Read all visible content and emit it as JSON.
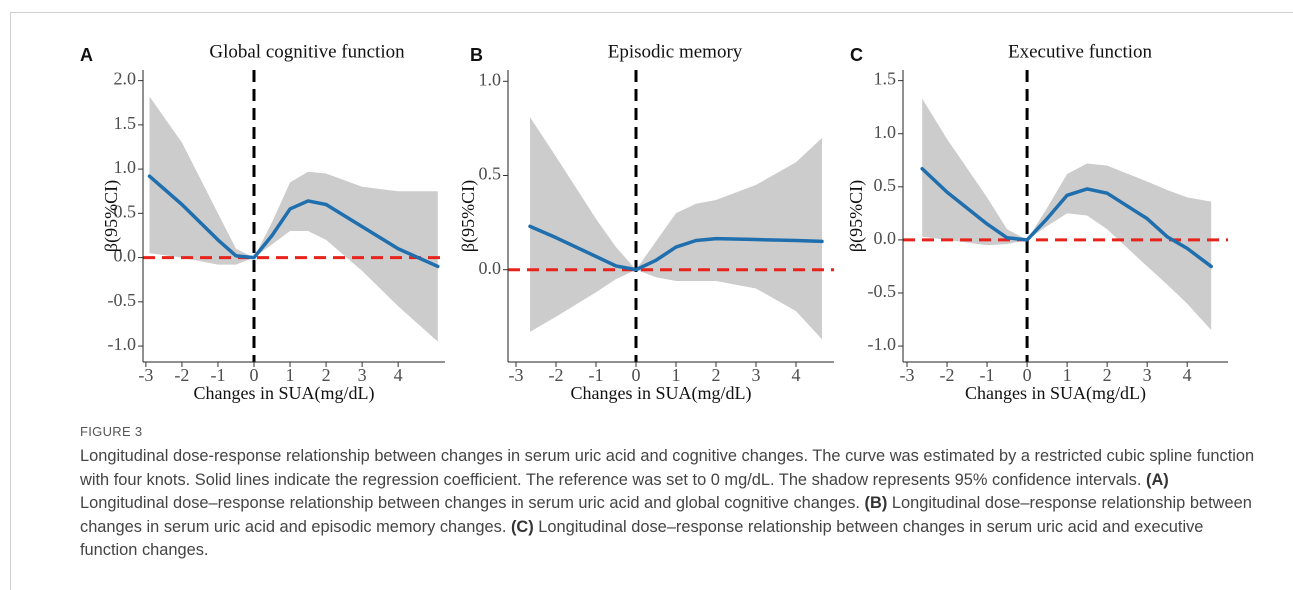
{
  "chart_data": [
    {
      "type": "line",
      "panel": "A",
      "title": "Global cognitive function",
      "xlabel": "Changes in  SUA(mg/dL)",
      "ylabel": "β(95%CI)",
      "xlim": [
        -3.08,
        5.3
      ],
      "xticks": [
        -3,
        -2,
        -1,
        0,
        1,
        2,
        3,
        4
      ],
      "ylim": [
        -1.18,
        2.12
      ],
      "yticks": [
        {
          "value": -1.0,
          "label": "-1.0"
        },
        -0.5,
        {
          "value": 0.0,
          "label": "0.0"
        },
        0.5,
        {
          "value": 1.0,
          "label": "1.0"
        },
        1.5,
        {
          "value": 2.0,
          "label": "2.0"
        }
      ],
      "x": [
        -2.9,
        -2,
        -1,
        -0.5,
        0,
        0.5,
        1,
        1.5,
        2,
        3,
        4,
        5.1
      ],
      "values": [
        0.92,
        0.6,
        0.2,
        0.02,
        0,
        0.25,
        0.55,
        0.64,
        0.6,
        0.35,
        0.1,
        -0.1
      ],
      "lower": [
        0.05,
        0.0,
        -0.08,
        -0.08,
        0,
        0.15,
        0.3,
        0.3,
        0.2,
        -0.15,
        -0.55,
        -0.95
      ],
      "upper": [
        1.82,
        1.3,
        0.5,
        0.1,
        0,
        0.4,
        0.85,
        0.97,
        0.95,
        0.8,
        0.75,
        0.75
      ],
      "hline": 0,
      "vline": 0,
      "color": "#1f6fae",
      "band_color": "#cccccc",
      "hline_color": "#e8231c",
      "vline_color": "#000000"
    },
    {
      "type": "line",
      "panel": "B",
      "title": "Episodic memory",
      "xlabel": "Changes in  SUA(mg/dL)",
      "ylabel": "β(95%CI)",
      "xlim": [
        -3.2,
        4.95
      ],
      "xticks": [
        -3,
        -2,
        -1,
        0,
        1,
        2,
        3,
        4
      ],
      "ylim": [
        -0.49,
        1.06
      ],
      "yticks": [
        {
          "value": 0.0,
          "label": "0.0"
        },
        0.5,
        {
          "value": 1.0,
          "label": "1.0"
        }
      ],
      "x": [
        -2.65,
        -2,
        -1,
        -0.5,
        0,
        0.5,
        1,
        1.5,
        2,
        3,
        4,
        4.65
      ],
      "values": [
        0.23,
        0.17,
        0.07,
        0.02,
        0,
        0.05,
        0.12,
        0.155,
        0.165,
        0.16,
        0.155,
        0.15
      ],
      "lower": [
        -0.33,
        -0.25,
        -0.12,
        -0.05,
        0,
        -0.04,
        -0.06,
        -0.06,
        -0.06,
        -0.1,
        -0.22,
        -0.37
      ],
      "upper": [
        0.81,
        0.6,
        0.27,
        0.12,
        0,
        0.15,
        0.3,
        0.35,
        0.37,
        0.45,
        0.57,
        0.7
      ],
      "hline": 0,
      "vline": 0,
      "color": "#1f6fae",
      "band_color": "#cccccc",
      "hline_color": "#e8231c",
      "vline_color": "#000000"
    },
    {
      "type": "line",
      "panel": "C",
      "title": "Executive function",
      "xlabel": "Changes in  SUA(mg/dL)",
      "ylabel": "β(95%CI)",
      "xlim": [
        -3.1,
        5.02
      ],
      "xticks": [
        -3,
        -2,
        -1,
        0,
        1,
        2,
        3,
        4
      ],
      "ylim": [
        -1.15,
        1.6
      ],
      "yticks": [
        {
          "value": -1.0,
          "label": "-1.0"
        },
        -0.5,
        {
          "value": 0.0,
          "label": "0.0"
        },
        0.5,
        {
          "value": 1.0,
          "label": "1.0"
        },
        1.5
      ],
      "x": [
        -2.62,
        -2,
        -1,
        -0.5,
        0,
        0.5,
        1,
        1.5,
        2,
        3,
        3.5,
        4,
        4.6
      ],
      "values": [
        0.67,
        0.45,
        0.15,
        0.02,
        0,
        0.2,
        0.42,
        0.48,
        0.44,
        0.2,
        0.03,
        -0.08,
        -0.25
      ],
      "lower": [
        0.03,
        0.0,
        -0.05,
        -0.04,
        0,
        0.13,
        0.25,
        0.23,
        0.1,
        -0.25,
        -0.42,
        -0.6,
        -0.85
      ],
      "upper": [
        1.33,
        0.95,
        0.4,
        0.1,
        0,
        0.3,
        0.62,
        0.72,
        0.7,
        0.55,
        0.47,
        0.4,
        0.36
      ],
      "hline": 0,
      "vline": 0,
      "color": "#1f6fae",
      "band_color": "#cccccc",
      "hline_color": "#e8231c",
      "vline_color": "#000000"
    }
  ],
  "caption": {
    "label": "FIGURE 3",
    "intro": "Longitudinal dose-response relationship between changes in serum uric acid and cognitive changes. The curve was estimated by a restricted cubic spline function with four knots. Solid lines indicate the regression coefficient. The reference was set to 0 mg/dL. The shadow represents 95% confidence intervals.",
    "items": [
      {
        "tag": "(A)",
        "text": "Longitudinal dose–response relationship between changes in serum uric acid and global cognitive changes."
      },
      {
        "tag": "(B)",
        "text": "Longitudinal dose–response relationship between changes in serum uric acid and episodic memory changes."
      },
      {
        "tag": "(C)",
        "text": "Longitudinal dose–response relationship between changes in serum uric acid and executive function changes."
      }
    ]
  }
}
